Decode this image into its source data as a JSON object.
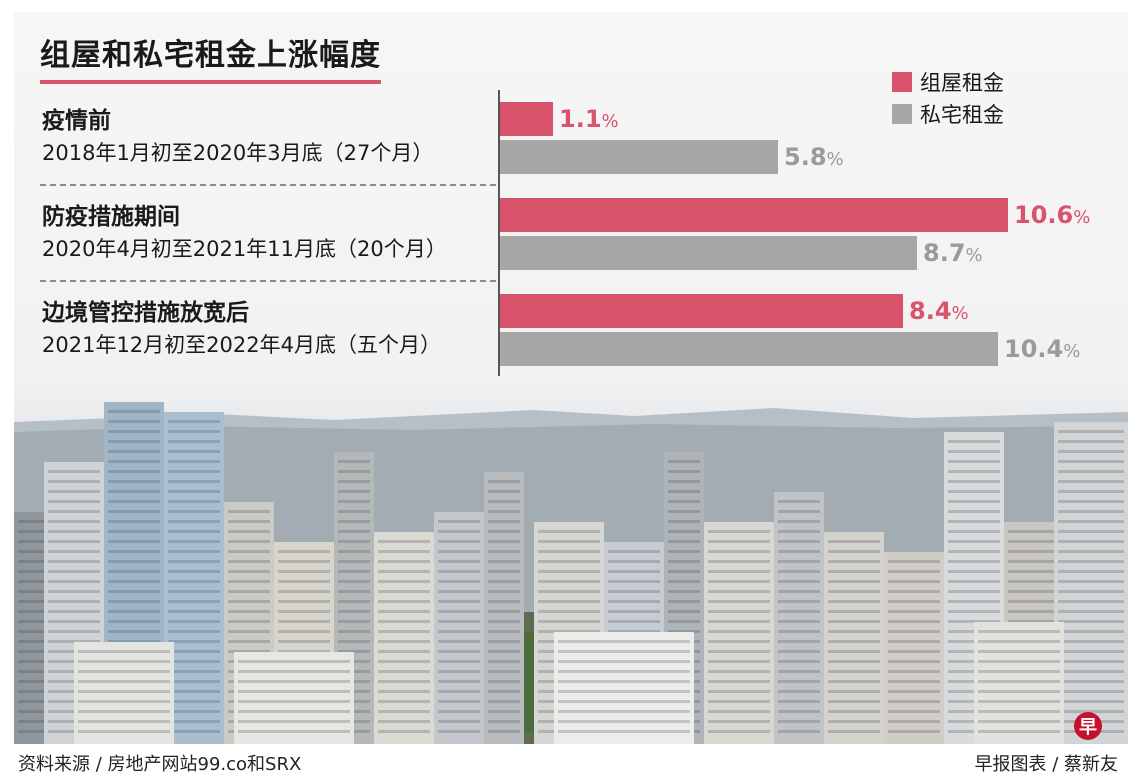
{
  "colors": {
    "public_housing": "#d9536c",
    "private_housing": "#a6a6a6",
    "public_label": "#d9536c",
    "private_label": "#9a9a9a"
  },
  "chart_data": {
    "type": "bar",
    "orientation": "horizontal",
    "title": "组屋和私宅租金上涨幅度",
    "legend_position": "top-right",
    "categories": [
      {
        "name": "疫情前",
        "period": "2018年1月初至2020年3月底（27个月）"
      },
      {
        "name": "防疫措施期间",
        "period": "2020年4月初至2021年11月底（20个月）"
      },
      {
        "name": "边境管控措施放宽后",
        "period": "2021年12月初至2022年4月底（五个月）"
      }
    ],
    "series": [
      {
        "name": "组屋租金",
        "values": [
          1.1,
          10.6,
          8.4
        ],
        "labels": [
          "1.1",
          "10.6",
          "8.4"
        ]
      },
      {
        "name": "私宅租金",
        "values": [
          5.8,
          8.7,
          10.4
        ],
        "labels": [
          "5.8",
          "8.7",
          "10.4"
        ]
      }
    ],
    "unit": "%",
    "xlim": [
      0,
      10.6
    ]
  },
  "footer": {
    "source": "资料来源 / 房地产网站99.co和SRX",
    "credit": "早报图表 / 蔡新友",
    "badge": "早"
  }
}
